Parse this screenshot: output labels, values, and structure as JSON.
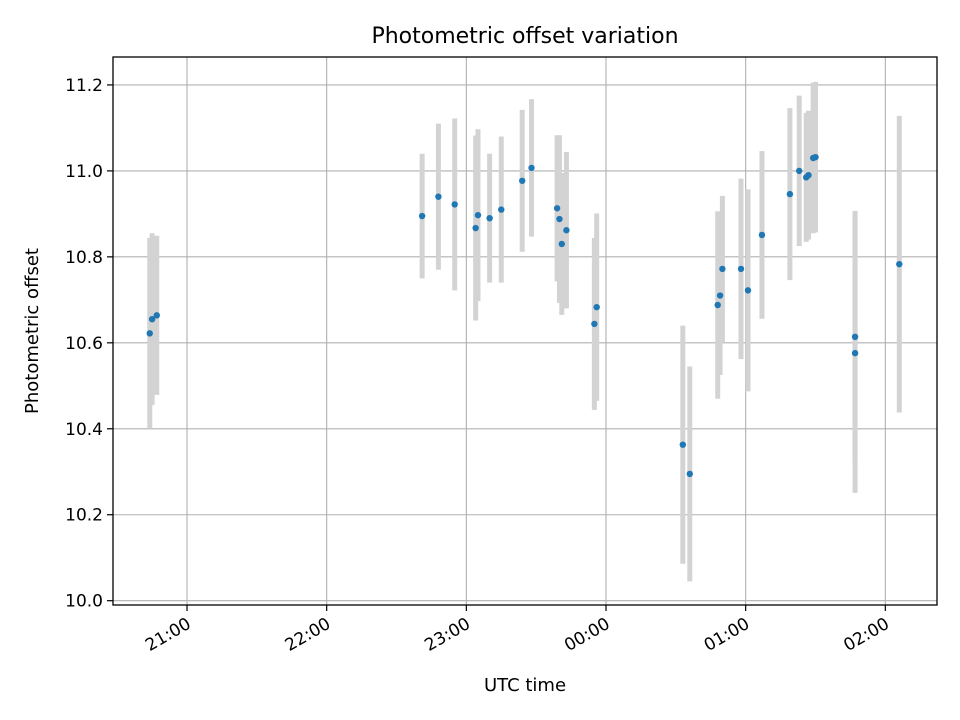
{
  "chart_data": {
    "type": "scatter",
    "title": "Photometric offset variation",
    "xlabel": "UTC time",
    "ylabel": "Photometric offset",
    "x_unit": "hours",
    "xlim": [
      20.47,
      26.37
    ],
    "ylim": [
      9.99,
      11.265
    ],
    "x_ticks": [
      {
        "value": 21,
        "label": "21:00"
      },
      {
        "value": 22,
        "label": "22:00"
      },
      {
        "value": 23,
        "label": "23:00"
      },
      {
        "value": 24,
        "label": "00:00"
      },
      {
        "value": 25,
        "label": "01:00"
      },
      {
        "value": 26,
        "label": "02:00"
      }
    ],
    "y_ticks": [
      {
        "value": 10.0,
        "label": "10.0"
      },
      {
        "value": 10.2,
        "label": "10.2"
      },
      {
        "value": 10.4,
        "label": "10.4"
      },
      {
        "value": 10.6,
        "label": "10.6"
      },
      {
        "value": 10.8,
        "label": "10.8"
      },
      {
        "value": 11.0,
        "label": "11.0"
      },
      {
        "value": 11.2,
        "label": "11.2"
      }
    ],
    "grid": true,
    "colors": {
      "point": "#1f77b4",
      "errorbar": "#d3d3d3",
      "grid": "#b0b0b0",
      "axes": "#000000"
    },
    "points": [
      {
        "x": "20:44",
        "y": 10.622,
        "err": 0.222
      },
      {
        "x": "20:45",
        "y": 10.655,
        "err": 0.2
      },
      {
        "x": "20:47",
        "y": 10.664,
        "err": 0.185
      },
      {
        "x": "22:41",
        "y": 10.895,
        "err": 0.145
      },
      {
        "x": "22:48",
        "y": 10.94,
        "err": 0.17
      },
      {
        "x": "22:55",
        "y": 10.922,
        "err": 0.2
      },
      {
        "x": "23:04",
        "y": 10.867,
        "err": 0.215
      },
      {
        "x": "23:05",
        "y": 10.897,
        "err": 0.2
      },
      {
        "x": "23:10",
        "y": 10.89,
        "err": 0.15
      },
      {
        "x": "23:15",
        "y": 10.91,
        "err": 0.17
      },
      {
        "x": "23:24",
        "y": 10.977,
        "err": 0.165
      },
      {
        "x": "23:28",
        "y": 11.007,
        "err": 0.16
      },
      {
        "x": "23:39",
        "y": 10.913,
        "err": 0.17
      },
      {
        "x": "23:40",
        "y": 10.888,
        "err": 0.195
      },
      {
        "x": "23:41",
        "y": 10.83,
        "err": 0.165
      },
      {
        "x": "23:43",
        "y": 10.862,
        "err": 0.182
      },
      {
        "x": "23:55",
        "y": 10.644,
        "err": 0.2
      },
      {
        "x": "23:56",
        "y": 10.683,
        "err": 0.218
      },
      {
        "x": "00:33",
        "y": 10.363,
        "err": 0.277
      },
      {
        "x": "00:36",
        "y": 10.295,
        "err": 0.25
      },
      {
        "x": "00:48",
        "y": 10.688,
        "err": 0.218
      },
      {
        "x": "00:49",
        "y": 10.71,
        "err": 0.185
      },
      {
        "x": "00:50",
        "y": 10.772,
        "err": 0.17
      },
      {
        "x": "00:58",
        "y": 10.772,
        "err": 0.21
      },
      {
        "x": "01:01",
        "y": 10.722,
        "err": 0.235
      },
      {
        "x": "01:07",
        "y": 10.851,
        "err": 0.195
      },
      {
        "x": "01:19",
        "y": 10.946,
        "err": 0.2
      },
      {
        "x": "01:23",
        "y": 11.0,
        "err": 0.175
      },
      {
        "x": "01:26",
        "y": 10.985,
        "err": 0.15
      },
      {
        "x": "01:27",
        "y": 10.99,
        "err": 0.15
      },
      {
        "x": "01:29",
        "y": 11.03,
        "err": 0.175
      },
      {
        "x": "01:30",
        "y": 11.032,
        "err": 0.175
      },
      {
        "x": "01:47",
        "y": 10.576,
        "err": 0.325
      },
      {
        "x": "01:47",
        "y": 10.614,
        "err": 0.293
      },
      {
        "x": "02:06",
        "y": 10.783,
        "err": 0.345
      }
    ]
  }
}
